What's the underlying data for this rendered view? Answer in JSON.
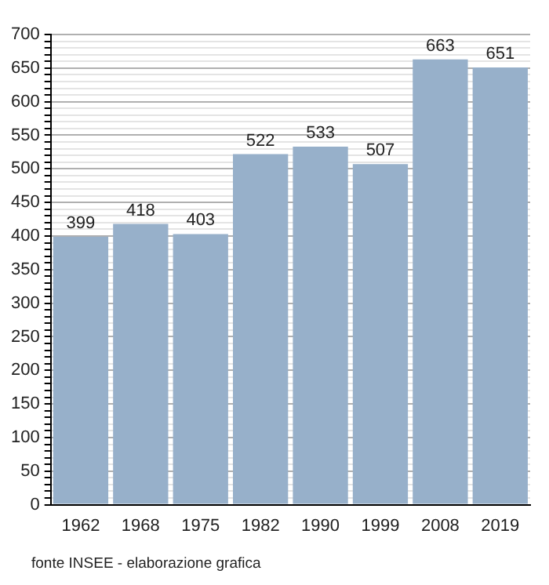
{
  "chart_data": {
    "type": "bar",
    "categories": [
      "1962",
      "1968",
      "1975",
      "1982",
      "1990",
      "1999",
      "2008",
      "2019"
    ],
    "values": [
      399,
      418,
      403,
      522,
      533,
      507,
      663,
      651
    ],
    "color": "#97b0ca",
    "data_labels": true,
    "grid": "y",
    "legend": false,
    "ylim": [
      0,
      700
    ],
    "yticks": [
      0,
      {
        "value": 10,
        "label": null
      },
      {
        "value": 20,
        "label": null
      },
      {
        "value": 30,
        "label": null
      },
      {
        "value": 40,
        "label": null
      },
      50,
      {
        "value": 60,
        "label": null
      },
      {
        "value": 70,
        "label": null
      },
      {
        "value": 80,
        "label": null
      },
      {
        "value": 90,
        "label": null
      },
      100,
      {
        "value": 110,
        "label": null
      },
      {
        "value": 120,
        "label": null
      },
      {
        "value": 130,
        "label": null
      },
      {
        "value": 140,
        "label": null
      },
      150,
      {
        "value": 160,
        "label": null
      },
      {
        "value": 170,
        "label": null
      },
      {
        "value": 180,
        "label": null
      },
      {
        "value": 190,
        "label": null
      },
      200,
      {
        "value": 210,
        "label": null
      },
      {
        "value": 220,
        "label": null
      },
      {
        "value": 230,
        "label": null
      },
      {
        "value": 240,
        "label": null
      },
      250,
      {
        "value": 260,
        "label": null
      },
      {
        "value": 270,
        "label": null
      },
      {
        "value": 280,
        "label": null
      },
      {
        "value": 290,
        "label": null
      },
      300,
      {
        "value": 310,
        "label": null
      },
      {
        "value": 320,
        "label": null
      },
      {
        "value": 330,
        "label": null
      },
      {
        "value": 340,
        "label": null
      },
      350,
      {
        "value": 360,
        "label": null
      },
      {
        "value": 370,
        "label": null
      },
      {
        "value": 380,
        "label": null
      },
      {
        "value": 390,
        "label": null
      },
      400,
      {
        "value": 410,
        "label": null
      },
      {
        "value": 420,
        "label": null
      },
      {
        "value": 430,
        "label": null
      },
      {
        "value": 440,
        "label": null
      },
      450,
      {
        "value": 460,
        "label": null
      },
      {
        "value": 470,
        "label": null
      },
      {
        "value": 480,
        "label": null
      },
      {
        "value": 490,
        "label": null
      },
      500,
      {
        "value": 510,
        "label": null
      },
      {
        "value": 520,
        "label": null
      },
      {
        "value": 530,
        "label": null
      },
      {
        "value": 540,
        "label": null
      },
      550,
      {
        "value": 560,
        "label": null
      },
      {
        "value": 570,
        "label": null
      },
      {
        "value": 580,
        "label": null
      },
      {
        "value": 590,
        "label": null
      },
      600,
      {
        "value": 610,
        "label": null
      },
      {
        "value": 620,
        "label": null
      },
      {
        "value": 630,
        "label": null
      },
      {
        "value": 640,
        "label": null
      },
      650,
      {
        "value": 660,
        "label": null
      },
      {
        "value": 670,
        "label": null
      },
      {
        "value": 680,
        "label": null
      },
      {
        "value": 690,
        "label": null
      },
      700
    ],
    "annotations": [
      "fonte INSEE - elaborazione grafica"
    ]
  }
}
